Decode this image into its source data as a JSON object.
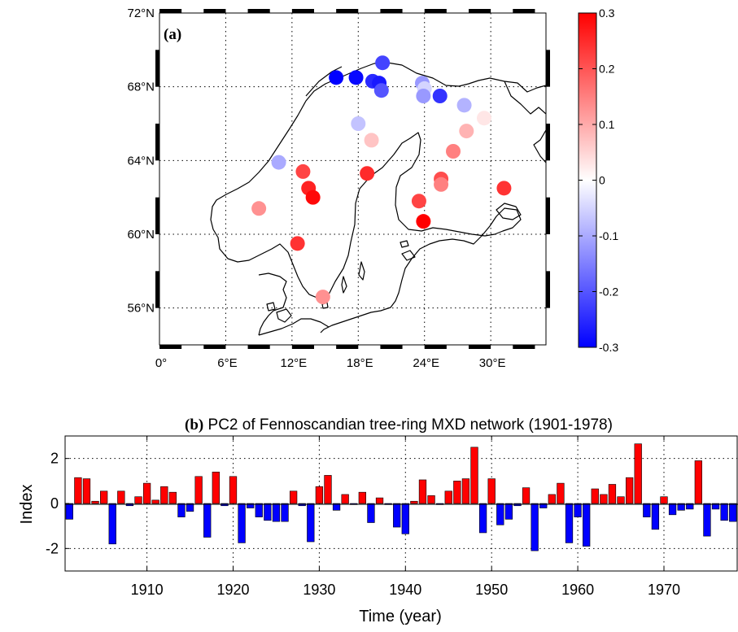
{
  "chart_data": [
    {
      "type": "scatter",
      "panel_label": "(a)",
      "map": {
        "lon_range": [
          0,
          35
        ],
        "lat_range": [
          54,
          72
        ],
        "lon_ticks": [
          {
            "value": 0,
            "label": "0°"
          },
          {
            "value": 6,
            "label": "6°E"
          },
          {
            "value": 12,
            "label": "12°E"
          },
          {
            "value": 18,
            "label": "18°E"
          },
          {
            "value": 24,
            "label": "24°E"
          },
          {
            "value": 30,
            "label": "30°E"
          }
        ],
        "lat_ticks": [
          {
            "value": 56,
            "label": "56°N"
          },
          {
            "value": 60,
            "label": "60°N"
          },
          {
            "value": 64,
            "label": "64°N"
          },
          {
            "value": 68,
            "label": "68°N"
          },
          {
            "value": 72,
            "label": "72°N"
          }
        ],
        "grid": true
      },
      "colorbar": {
        "range": [
          -0.3,
          0.3
        ],
        "ticks": [
          "0.3",
          "0.2",
          "0.1",
          "0",
          "-0.1",
          "-0.2",
          "-0.3"
        ],
        "tick_values": [
          0.3,
          0.2,
          0.1,
          0,
          -0.1,
          -0.2,
          -0.3
        ],
        "colors": {
          "low": "#0000ff",
          "mid": "#ffffff",
          "high": "#ff0000"
        }
      },
      "points": [
        {
          "lon": 20.2,
          "lat": 69.3,
          "value": -0.22
        },
        {
          "lon": 16.0,
          "lat": 68.5,
          "value": -0.3
        },
        {
          "lon": 17.8,
          "lat": 68.5,
          "value": -0.29
        },
        {
          "lon": 19.3,
          "lat": 68.3,
          "value": -0.25
        },
        {
          "lon": 19.9,
          "lat": 68.2,
          "value": -0.27
        },
        {
          "lon": 20.1,
          "lat": 67.8,
          "value": -0.2
        },
        {
          "lon": 23.8,
          "lat": 68.2,
          "value": -0.12
        },
        {
          "lon": 24.0,
          "lat": 67.9,
          "value": -0.05
        },
        {
          "lon": 23.9,
          "lat": 67.5,
          "value": -0.12
        },
        {
          "lon": 25.4,
          "lat": 67.5,
          "value": -0.24
        },
        {
          "lon": 27.6,
          "lat": 67.0,
          "value": -0.09
        },
        {
          "lon": 29.4,
          "lat": 66.3,
          "value": 0.03
        },
        {
          "lon": 18.0,
          "lat": 66.0,
          "value": -0.07
        },
        {
          "lon": 27.8,
          "lat": 65.6,
          "value": 0.09
        },
        {
          "lon": 19.2,
          "lat": 65.1,
          "value": 0.07
        },
        {
          "lon": 26.6,
          "lat": 64.5,
          "value": 0.15
        },
        {
          "lon": 10.8,
          "lat": 63.9,
          "value": -0.1
        },
        {
          "lon": 13.0,
          "lat": 63.4,
          "value": 0.22
        },
        {
          "lon": 18.8,
          "lat": 63.3,
          "value": 0.25
        },
        {
          "lon": 25.5,
          "lat": 63.0,
          "value": 0.21
        },
        {
          "lon": 25.5,
          "lat": 62.7,
          "value": 0.15
        },
        {
          "lon": 13.5,
          "lat": 62.5,
          "value": 0.26
        },
        {
          "lon": 31.2,
          "lat": 62.5,
          "value": 0.24
        },
        {
          "lon": 13.9,
          "lat": 62.0,
          "value": 0.29
        },
        {
          "lon": 23.5,
          "lat": 61.8,
          "value": 0.22
        },
        {
          "lon": 9.0,
          "lat": 61.4,
          "value": 0.13
        },
        {
          "lon": 23.9,
          "lat": 60.7,
          "value": 0.3
        },
        {
          "lon": 12.5,
          "lat": 59.5,
          "value": 0.24
        },
        {
          "lon": 14.8,
          "lat": 56.6,
          "value": 0.13
        }
      ]
    },
    {
      "type": "bar",
      "title_bold": "(b)",
      "title": "PC2 of Fennoscandian tree-ring MXD network (1901-1978)",
      "xlabel": "Time (year)",
      "ylabel": "Index",
      "xlim": [
        1901,
        1978
      ],
      "ylim": [
        -3,
        3
      ],
      "xticks": [
        1910,
        1920,
        1930,
        1940,
        1950,
        1960,
        1970
      ],
      "yticks": [
        2,
        0,
        -2
      ],
      "grid": true,
      "colors": {
        "positive": "#ff0000",
        "negative": "#0000ff"
      },
      "years": [
        1901,
        1902,
        1903,
        1904,
        1905,
        1906,
        1907,
        1908,
        1909,
        1910,
        1911,
        1912,
        1913,
        1914,
        1915,
        1916,
        1917,
        1918,
        1919,
        1920,
        1921,
        1922,
        1923,
        1924,
        1925,
        1926,
        1927,
        1928,
        1929,
        1930,
        1931,
        1932,
        1933,
        1934,
        1935,
        1936,
        1937,
        1938,
        1939,
        1940,
        1941,
        1942,
        1943,
        1944,
        1945,
        1946,
        1947,
        1948,
        1949,
        1950,
        1951,
        1952,
        1953,
        1954,
        1955,
        1956,
        1957,
        1958,
        1959,
        1960,
        1961,
        1962,
        1963,
        1964,
        1965,
        1966,
        1967,
        1968,
        1969,
        1970,
        1971,
        1972,
        1973,
        1974,
        1975,
        1976,
        1977,
        1978
      ],
      "values": [
        -0.7,
        1.15,
        1.1,
        0.1,
        0.55,
        -1.8,
        0.55,
        -0.1,
        0.3,
        0.9,
        0.15,
        0.75,
        0.5,
        -0.6,
        -0.35,
        1.2,
        -1.5,
        1.4,
        -0.1,
        1.2,
        -1.75,
        -0.2,
        -0.6,
        -0.75,
        -0.8,
        -0.8,
        0.55,
        -0.1,
        -1.7,
        0.75,
        1.25,
        -0.3,
        0.4,
        -0.05,
        0.5,
        -0.85,
        0.25,
        -0.05,
        -1.05,
        -1.35,
        0.1,
        1.05,
        0.35,
        -0.05,
        0.55,
        1.0,
        1.1,
        2.5,
        -1.3,
        1.1,
        -0.95,
        -0.7,
        -0.1,
        0.7,
        -2.1,
        -0.2,
        0.4,
        0.9,
        -1.75,
        -0.6,
        -1.9,
        0.65,
        0.4,
        0.85,
        0.3,
        1.15,
        2.65,
        -0.6,
        -1.15,
        0.3,
        -0.5,
        -0.3,
        -0.25,
        1.9,
        -1.45,
        -0.25,
        -0.75,
        -0.8
      ]
    }
  ]
}
